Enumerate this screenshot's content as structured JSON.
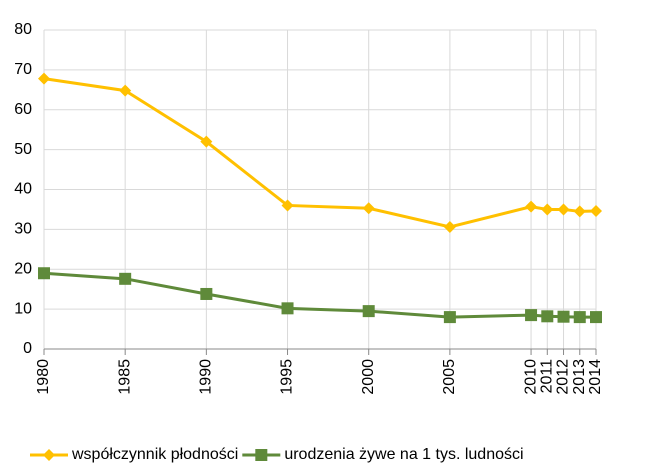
{
  "chart_data": {
    "type": "line",
    "x": [
      1980,
      1985,
      1990,
      1995,
      2000,
      2005,
      2010,
      2011,
      2012,
      2013,
      2014
    ],
    "series": [
      {
        "name": "współczynnik płodności",
        "color": "#ffc000",
        "marker": "diamond",
        "values": [
          67.8,
          64.8,
          52,
          36,
          35.3,
          30.6,
          35.7,
          35,
          35,
          34.5,
          34.6
        ]
      },
      {
        "name": "urodzenia żywe na 1 tys. ludności",
        "color": "#5f8a3a",
        "marker": "square",
        "values": [
          19,
          17.6,
          13.8,
          10.2,
          9.5,
          8,
          8.5,
          8.2,
          8.1,
          8,
          8
        ]
      }
    ],
    "xlim": [
      1980,
      2014
    ],
    "xticks": [
      1980,
      1985,
      1990,
      1995,
      2000,
      2005,
      2010,
      2011,
      2012,
      2013,
      2014
    ],
    "ylim": [
      0,
      80
    ],
    "yticks": [
      0,
      10,
      20,
      30,
      40,
      50,
      60,
      70,
      80
    ],
    "grid": true,
    "legend": "bottom"
  }
}
